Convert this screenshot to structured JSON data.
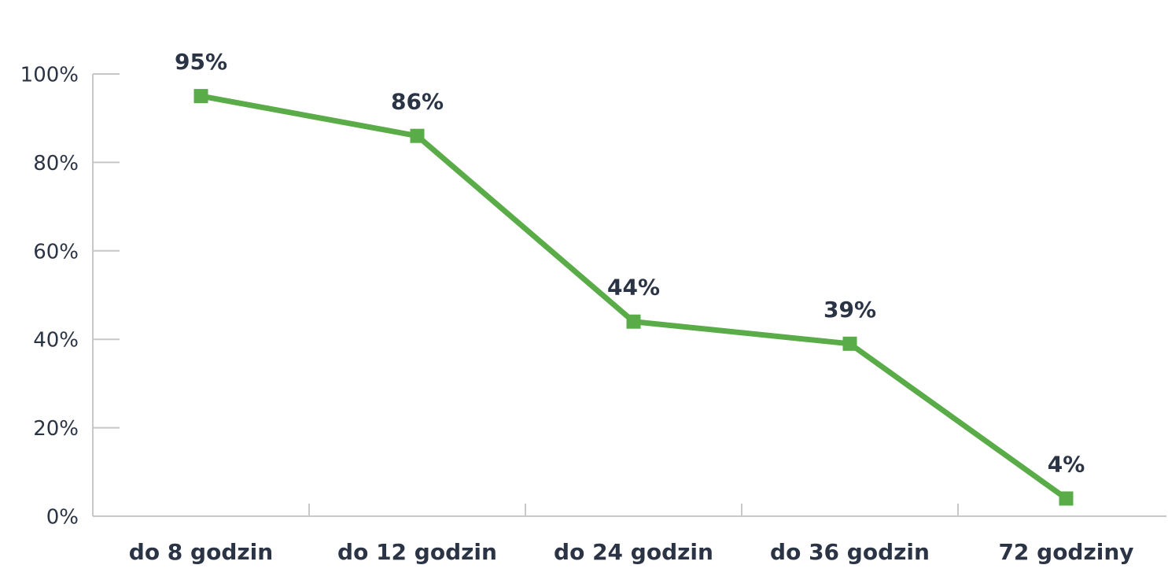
{
  "chart_data": {
    "type": "line",
    "categories": [
      "do 8 godzin",
      "do 12 godzin",
      "do 24 godzin",
      "do 36 godzin",
      "72 godziny"
    ],
    "series": [
      {
        "color": "#59ac47",
        "values": [
          95,
          86,
          44,
          39,
          4
        ],
        "value_labels": [
          "95%",
          "86%",
          "44%",
          "39%",
          "4%"
        ]
      }
    ],
    "ylim": [
      0,
      100
    ],
    "yticks": [
      {
        "value": 0,
        "label": "0%"
      },
      {
        "value": 20,
        "label": "20%"
      },
      {
        "value": 40,
        "label": "40%"
      },
      {
        "value": 60,
        "label": "60%"
      },
      {
        "value": 80,
        "label": "80%"
      },
      {
        "value": 100,
        "label": "100%"
      }
    ]
  }
}
